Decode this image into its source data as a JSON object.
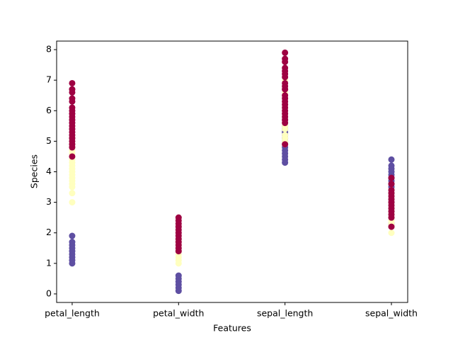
{
  "chart_data": {
    "type": "strip",
    "xlabel": "Features",
    "ylabel": "Species",
    "categories": [
      "petal_length",
      "petal_width",
      "sepal_length",
      "sepal_width"
    ],
    "xlim": [
      -0.146,
      3.153
    ],
    "ylim": [
      -0.28,
      8.28
    ],
    "yticks": [
      0,
      1,
      2,
      3,
      4,
      5,
      6,
      7,
      8
    ],
    "series": [
      {
        "color": "#5e4fa2",
        "values": [
          [
            1.0,
            1.1,
            1.2,
            1.3,
            1.4,
            1.5,
            1.6,
            1.7,
            1.9
          ],
          [
            0.1,
            0.2,
            0.3,
            0.4,
            0.5,
            0.6
          ],
          [
            4.3,
            4.4,
            4.5,
            4.6,
            4.7,
            4.8,
            4.9,
            5.0,
            5.1,
            5.2,
            5.3,
            5.4,
            5.5,
            5.7,
            5.8
          ],
          [
            2.3,
            2.9,
            3.0,
            3.1,
            3.2,
            3.3,
            3.4,
            3.5,
            3.6,
            3.7,
            3.8,
            3.9,
            4.0,
            4.1,
            4.2,
            4.4
          ]
        ]
      },
      {
        "color": "#ffffbf",
        "values": [
          [
            3.0,
            3.3,
            3.5,
            3.6,
            3.7,
            3.8,
            3.9,
            4.0,
            4.1,
            4.2,
            4.3,
            4.4,
            4.5,
            4.6,
            4.7,
            4.8,
            4.9,
            5.0,
            5.1
          ],
          [
            1.0,
            1.1,
            1.2,
            1.3,
            1.4,
            1.5,
            1.6,
            1.7,
            1.8
          ],
          [
            4.9,
            5.0,
            5.1,
            5.2,
            5.4,
            5.5,
            5.6,
            5.7,
            5.8,
            5.9,
            6.0,
            6.1,
            6.2,
            6.3,
            6.4,
            6.5,
            6.6,
            6.7,
            6.8,
            6.9,
            7.0
          ],
          [
            2.0,
            2.2,
            2.3,
            2.4,
            2.5,
            2.6,
            2.7,
            2.8,
            2.9,
            3.0,
            3.1,
            3.2,
            3.3,
            3.4
          ]
        ]
      },
      {
        "color": "#9e0142",
        "values": [
          [
            4.5,
            4.8,
            4.9,
            5.0,
            5.1,
            5.2,
            5.3,
            5.4,
            5.5,
            5.6,
            5.7,
            5.8,
            5.9,
            6.0,
            6.1,
            6.3,
            6.4,
            6.6,
            6.7,
            6.9
          ],
          [
            1.4,
            1.5,
            1.6,
            1.7,
            1.8,
            1.9,
            2.0,
            2.1,
            2.2,
            2.3,
            2.4,
            2.5
          ],
          [
            4.9,
            5.6,
            5.7,
            5.8,
            5.9,
            6.0,
            6.1,
            6.2,
            6.3,
            6.4,
            6.5,
            6.7,
            6.8,
            6.9,
            7.1,
            7.2,
            7.3,
            7.4,
            7.6,
            7.7,
            7.9
          ],
          [
            2.2,
            2.5,
            2.6,
            2.7,
            2.8,
            2.9,
            3.0,
            3.1,
            3.2,
            3.3,
            3.4,
            3.6,
            3.8
          ]
        ]
      }
    ]
  }
}
